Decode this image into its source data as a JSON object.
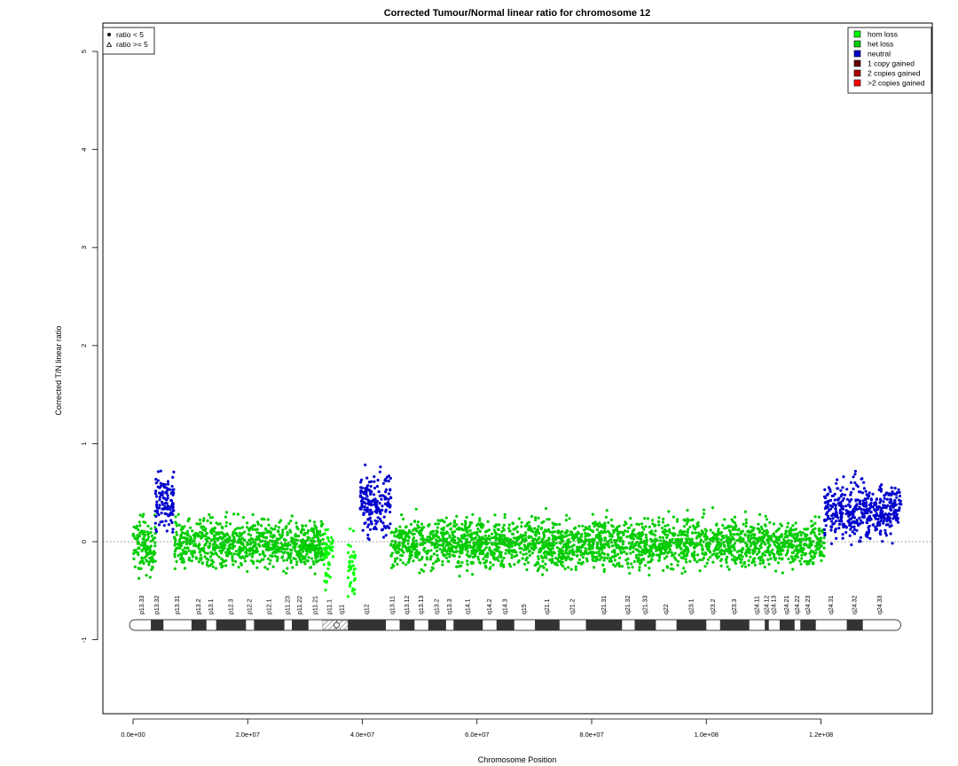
{
  "chart_data": {
    "type": "scatter",
    "title": "Corrected Tumour/Normal linear ratio for chromosome  12",
    "xlabel": "Chromosome Position",
    "ylabel": "Corrected T/N linear ratio",
    "xlim": [
      0,
      134000000
    ],
    "ylim": [
      -1.8,
      5.2
    ],
    "x_ticks": [
      0,
      20000000,
      40000000,
      60000000,
      80000000,
      100000000,
      120000000
    ],
    "x_tick_labels": [
      "0.0e+00",
      "2.0e+07",
      "4.0e+07",
      "6.0e+07",
      "8.0e+07",
      "1.0e+08",
      "1.2e+08"
    ],
    "y_ticks": [
      -1,
      0,
      1,
      2,
      3,
      4,
      5
    ],
    "y_tick_labels": [
      "-1",
      "0",
      "1",
      "2",
      "3",
      "4",
      "5"
    ],
    "reference_line": 0,
    "shape_legend": {
      "placement": "top-left",
      "entries": [
        {
          "symbol": "dot",
          "label": "ratio < 5"
        },
        {
          "symbol": "triangle",
          "label": "ratio >= 5"
        }
      ]
    },
    "color_legend": {
      "placement": "top-right",
      "entries": [
        {
          "label": "hom loss",
          "color": "#00ff00"
        },
        {
          "label": "het loss",
          "color": "#00cc00"
        },
        {
          "label": "neutral",
          "color": "#0000cc"
        },
        {
          "label": "1 copy gained",
          "color": "#660000"
        },
        {
          "label": "2 copies gained",
          "color": "#aa0000"
        },
        {
          "label": ">2 copies gained",
          "color": "#ff0000"
        }
      ]
    },
    "segments": [
      {
        "start": 0,
        "end": 3900000,
        "mean": -0.05,
        "sd": 0.14,
        "state": "het loss",
        "color": "#00cc00"
      },
      {
        "start": 3900000,
        "end": 7200000,
        "mean": 0.42,
        "sd": 0.14,
        "state": "neutral",
        "color": "#0000cc"
      },
      {
        "start": 7200000,
        "end": 33200000,
        "mean": -0.02,
        "sd": 0.12,
        "state": "het loss",
        "color": "#00cc00"
      },
      {
        "start": 33200000,
        "end": 34900000,
        "mean": -0.15,
        "sd": 0.13,
        "state": "hom loss",
        "color": "#00ff00"
      },
      {
        "start": 37500000,
        "end": 38800000,
        "mean": -0.25,
        "sd": 0.13,
        "state": "hom loss",
        "color": "#00ff00"
      },
      {
        "start": 39600000,
        "end": 45000000,
        "mean": 0.4,
        "sd": 0.15,
        "state": "neutral",
        "color": "#0000cc"
      },
      {
        "start": 45000000,
        "end": 120600000,
        "mean": -0.02,
        "sd": 0.12,
        "state": "het loss",
        "color": "#00cc00"
      },
      {
        "start": 120600000,
        "end": 134000000,
        "mean": 0.32,
        "sd": 0.14,
        "state": "neutral",
        "color": "#0000cc"
      }
    ],
    "cytobands": [
      {
        "name": "p13.33",
        "start": 0,
        "end": 3100000,
        "stain": "gneg"
      },
      {
        "name": "p13.32",
        "start": 3100000,
        "end": 5300000,
        "stain": "gpos"
      },
      {
        "name": "p13.31",
        "start": 5300000,
        "end": 10200000,
        "stain": "gneg"
      },
      {
        "name": "p13.2",
        "start": 10200000,
        "end": 12800000,
        "stain": "gpos"
      },
      {
        "name": "p13.1",
        "start": 12800000,
        "end": 14500000,
        "stain": "gneg"
      },
      {
        "name": "p12.3",
        "start": 14500000,
        "end": 19700000,
        "stain": "gpos"
      },
      {
        "name": "p12.2",
        "start": 19700000,
        "end": 21100000,
        "stain": "gneg"
      },
      {
        "name": "p12.1",
        "start": 21100000,
        "end": 26400000,
        "stain": "gpos"
      },
      {
        "name": "p11.23",
        "start": 26400000,
        "end": 27700000,
        "stain": "gneg"
      },
      {
        "name": "p11.22",
        "start": 27700000,
        "end": 30600000,
        "stain": "gpos"
      },
      {
        "name": "p11.21",
        "start": 30600000,
        "end": 33100000,
        "stain": "gneg"
      },
      {
        "name": "p11.1",
        "start": 33100000,
        "end": 35500000,
        "stain": "acen"
      },
      {
        "name": "q11",
        "start": 35500000,
        "end": 37500000,
        "stain": "acen"
      },
      {
        "name": "q12",
        "start": 37500000,
        "end": 44100000,
        "stain": "gpos"
      },
      {
        "name": "q13.11",
        "start": 44100000,
        "end": 46500000,
        "stain": "gneg"
      },
      {
        "name": "q13.12",
        "start": 46500000,
        "end": 49100000,
        "stain": "gpos"
      },
      {
        "name": "q13.13",
        "start": 49100000,
        "end": 51500000,
        "stain": "gneg"
      },
      {
        "name": "q13.2",
        "start": 51500000,
        "end": 54600000,
        "stain": "gpos"
      },
      {
        "name": "q13.3",
        "start": 54600000,
        "end": 55900000,
        "stain": "gneg"
      },
      {
        "name": "q14.1",
        "start": 55900000,
        "end": 61000000,
        "stain": "gpos"
      },
      {
        "name": "q14.2",
        "start": 61000000,
        "end": 63400000,
        "stain": "gneg"
      },
      {
        "name": "q14.3",
        "start": 63400000,
        "end": 66500000,
        "stain": "gpos"
      },
      {
        "name": "q15",
        "start": 66500000,
        "end": 70100000,
        "stain": "gneg"
      },
      {
        "name": "q21.1",
        "start": 70100000,
        "end": 74400000,
        "stain": "gpos"
      },
      {
        "name": "q21.2",
        "start": 74400000,
        "end": 79000000,
        "stain": "gneg"
      },
      {
        "name": "q21.31",
        "start": 79000000,
        "end": 85300000,
        "stain": "gpos"
      },
      {
        "name": "q21.32",
        "start": 85300000,
        "end": 87500000,
        "stain": "gneg"
      },
      {
        "name": "q21.33",
        "start": 87500000,
        "end": 91200000,
        "stain": "gpos"
      },
      {
        "name": "q22",
        "start": 91200000,
        "end": 94800000,
        "stain": "gneg"
      },
      {
        "name": "q23.1",
        "start": 94800000,
        "end": 100000000,
        "stain": "gpos"
      },
      {
        "name": "q23.2",
        "start": 100000000,
        "end": 102400000,
        "stain": "gneg"
      },
      {
        "name": "q23.3",
        "start": 102400000,
        "end": 107500000,
        "stain": "gpos"
      },
      {
        "name": "q24.11",
        "start": 107500000,
        "end": 110200000,
        "stain": "gneg"
      },
      {
        "name": "q24.12",
        "start": 110200000,
        "end": 110900000,
        "stain": "gpos"
      },
      {
        "name": "q24.13",
        "start": 110900000,
        "end": 112800000,
        "stain": "gneg"
      },
      {
        "name": "q24.21",
        "start": 112800000,
        "end": 115400000,
        "stain": "gpos"
      },
      {
        "name": "q24.22",
        "start": 115400000,
        "end": 116400000,
        "stain": "gneg"
      },
      {
        "name": "q24.23",
        "start": 116400000,
        "end": 119100000,
        "stain": "gpos"
      },
      {
        "name": "q24.31",
        "start": 119100000,
        "end": 124500000,
        "stain": "gneg"
      },
      {
        "name": "q24.32",
        "start": 124500000,
        "end": 127300000,
        "stain": "gpos"
      },
      {
        "name": "q24.33",
        "start": 127300000,
        "end": 133300000,
        "stain": "gneg"
      }
    ]
  }
}
